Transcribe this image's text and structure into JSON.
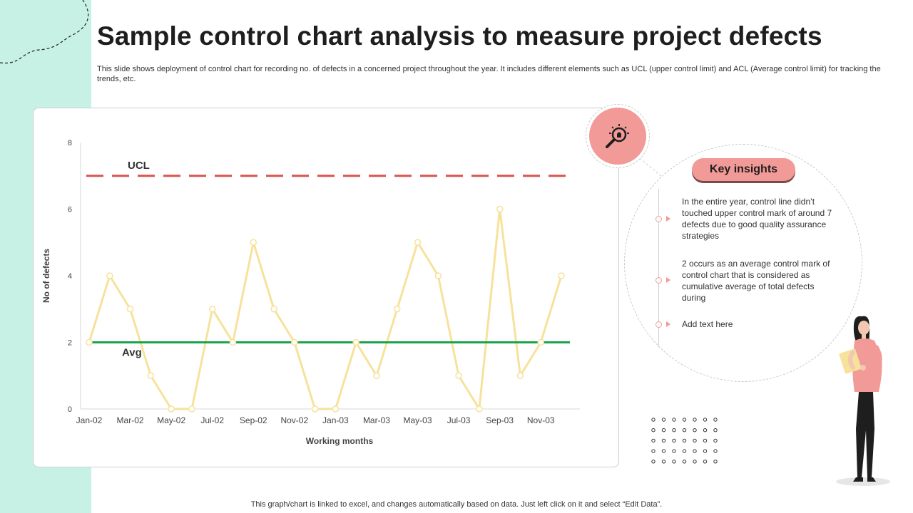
{
  "title": "Sample control chart analysis to measure project defects",
  "subtitle": "This slide shows deployment of control chart for recording no. of defects in a concerned project throughout the year. It includes different elements such as UCL (upper control limit) and ACL (Average control limit) for tracking the trends, etc.",
  "footer": "This graph/chart is linked to excel, and changes automatically based on data. Just left click on it and select “Edit Data”.",
  "insights": {
    "heading": "Key insights",
    "items": [
      "In the entire year, control line didn’t touched upper control mark of around 7 defects due to good quality assurance strategies",
      "2 occurs as an average control mark of control chart that is considered as cumulative average of total defects during",
      "Add text here"
    ]
  },
  "icons": {
    "insight_icon": "lightbulb-magnifier-icon",
    "person": "woman-with-clipboard"
  },
  "colors": {
    "accent": "#f29a97",
    "band": "#c6f1e4",
    "series": "#f7e29b",
    "ucl": "#d9534f",
    "avg": "#1aa34a"
  },
  "chart_data": {
    "type": "line",
    "xlabel": "Working months",
    "ylabel": "No of defects",
    "ylim": [
      0,
      8
    ],
    "yticks": [
      0,
      2,
      4,
      6,
      8
    ],
    "x_tick_labels": [
      "Jan-02",
      "Mar-02",
      "May-02",
      "Jul-02",
      "Sep-02",
      "Nov-02",
      "Jan-03",
      "Mar-03",
      "May-03",
      "Jul-03",
      "Sep-03",
      "Nov-03"
    ],
    "categories": [
      "Jan-02",
      "Feb-02",
      "Mar-02",
      "Apr-02",
      "May-02",
      "Jun-02",
      "Jul-02",
      "Aug-02",
      "Sep-02",
      "Oct-02",
      "Nov-02",
      "Dec-02",
      "Jan-03",
      "Feb-03",
      "Mar-03",
      "Apr-03",
      "May-03",
      "Jun-03",
      "Jul-03",
      "Aug-03",
      "Sep-03",
      "Oct-03",
      "Nov-03",
      "Dec-03"
    ],
    "series": [
      {
        "values": [
          2,
          4,
          3,
          1,
          0,
          0,
          3,
          2,
          5,
          3,
          2,
          0,
          0,
          2,
          1,
          3,
          5,
          4,
          1,
          0,
          6,
          1,
          2,
          4
        ]
      }
    ],
    "control_lines": [
      {
        "label": "UCL",
        "value": 7,
        "style": "dashed"
      },
      {
        "label": "Avg",
        "value": 2,
        "style": "solid"
      }
    ],
    "grid": false,
    "legend": "none"
  }
}
